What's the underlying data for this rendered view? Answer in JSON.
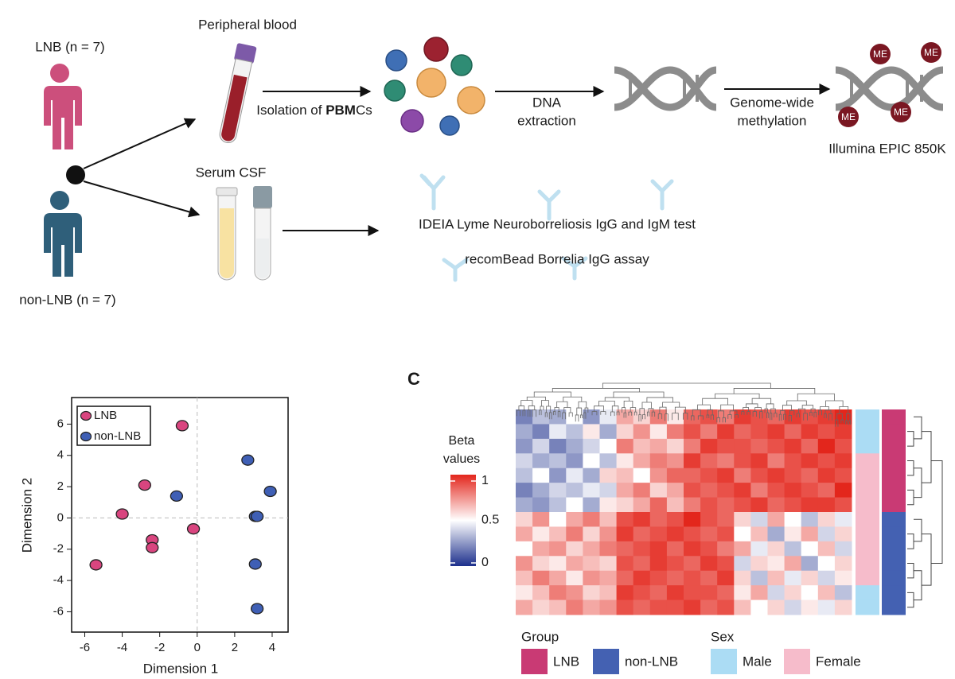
{
  "workflow": {
    "lnb_label": "LNB (n = 7)",
    "nonlnb_label": "non-LNB (n = 7)",
    "peripheral_blood": "Peripheral blood",
    "isolation_prefix": "Isolation of ",
    "isolation_bold": "PBM",
    "isolation_suffix": "Cs",
    "dna_extraction": [
      "DNA",
      "extraction"
    ],
    "genome_wide": [
      "Genome-wide",
      "methylation"
    ],
    "illumina": "Illumina EPIC 850K",
    "me_labels": [
      "ME",
      "ME",
      "ME",
      "ME"
    ],
    "serum_csf": "Serum CSF",
    "ideia": "IDEIA Lyme Neuroborreliosis IgG and IgM test",
    "recombead": "recomBead Borrelia IgG assay"
  },
  "panel_label": "C",
  "chart_data": [
    {
      "type": "scatter",
      "xlabel": "Dimension 1",
      "ylabel": "Dimension 2",
      "xlim": [
        -6.7,
        4.85
      ],
      "ylim": [
        -7.3,
        7.7
      ],
      "xticks": [
        -6,
        -4,
        -2,
        0,
        2,
        4
      ],
      "yticks": [
        -6,
        -4,
        -2,
        0,
        2,
        4,
        6
      ],
      "legend": "upper left",
      "series": [
        {
          "name": "LNB",
          "color": "#d9457f",
          "x": [
            -0.8,
            -2.8,
            -4.0,
            -0.2,
            -2.4,
            -2.4,
            -5.4
          ],
          "y": [
            5.9,
            2.1,
            0.25,
            -0.7,
            -1.4,
            -1.9,
            -3.0
          ]
        },
        {
          "name": "non-LNB",
          "color": "#3f5fb5",
          "x": [
            2.7,
            3.9,
            -1.1,
            3.1,
            3.2,
            3.1,
            3.2
          ],
          "y": [
            3.7,
            1.7,
            1.4,
            0.1,
            0.1,
            -2.95,
            -5.8
          ]
        }
      ]
    },
    {
      "type": "heatmap",
      "colorbar_title": [
        "Beta",
        "values"
      ],
      "zlim": [
        0,
        1
      ],
      "zticks": [
        0,
        0.5,
        1
      ],
      "colormap": [
        "#1c2f8c",
        "#ffffff",
        "#e3261c"
      ],
      "values": [
        [
          0.2,
          0.35,
          0.3,
          0.5,
          0.25,
          0.45,
          0.7,
          0.6,
          0.8,
          0.55,
          0.85,
          0.9,
          0.8,
          0.95,
          0.9,
          0.85,
          0.95,
          0.9,
          0.95,
          1
        ],
        [
          0.3,
          0.2,
          0.45,
          0.35,
          0.55,
          0.3,
          0.6,
          0.75,
          0.55,
          0.8,
          0.9,
          0.8,
          0.95,
          0.85,
          0.9,
          0.95,
          0.85,
          0.95,
          0.9,
          0.95
        ],
        [
          0.25,
          0.4,
          0.2,
          0.3,
          0.4,
          0.5,
          0.8,
          0.65,
          0.7,
          0.6,
          0.8,
          0.95,
          0.9,
          0.9,
          0.85,
          0.9,
          0.95,
          0.85,
          1,
          0.9
        ],
        [
          0.4,
          0.3,
          0.35,
          0.25,
          0.5,
          0.35,
          0.55,
          0.7,
          0.8,
          0.75,
          0.95,
          0.85,
          0.8,
          0.9,
          0.95,
          0.8,
          0.9,
          0.95,
          0.9,
          0.95
        ],
        [
          0.35,
          0.5,
          0.25,
          0.45,
          0.3,
          0.6,
          0.65,
          0.5,
          0.75,
          0.85,
          0.85,
          0.9,
          0.95,
          0.8,
          0.9,
          0.95,
          0.9,
          0.85,
          0.95,
          0.9
        ],
        [
          0.2,
          0.3,
          0.4,
          0.35,
          0.45,
          0.4,
          0.7,
          0.8,
          0.6,
          0.7,
          0.9,
          0.85,
          0.9,
          0.95,
          0.8,
          0.9,
          0.95,
          0.9,
          0.85,
          1
        ],
        [
          0.3,
          0.25,
          0.35,
          0.5,
          0.3,
          0.55,
          0.6,
          0.7,
          0.85,
          0.65,
          0.8,
          0.9,
          0.85,
          0.9,
          0.95,
          0.85,
          0.9,
          0.95,
          0.95,
          0.9
        ],
        [
          0.6,
          0.75,
          0.5,
          0.7,
          0.8,
          0.65,
          0.9,
          0.95,
          0.85,
          0.9,
          1,
          0.9,
          0.85,
          0.6,
          0.4,
          0.7,
          0.5,
          0.35,
          0.6,
          0.45
        ],
        [
          0.7,
          0.55,
          0.65,
          0.8,
          0.6,
          0.75,
          0.95,
          0.85,
          0.9,
          0.95,
          0.9,
          0.85,
          0.9,
          0.5,
          0.65,
          0.3,
          0.55,
          0.7,
          0.4,
          0.6
        ],
        [
          0.5,
          0.7,
          0.75,
          0.6,
          0.7,
          0.8,
          0.85,
          0.9,
          0.95,
          0.85,
          0.95,
          0.9,
          0.8,
          0.7,
          0.45,
          0.6,
          0.35,
          0.5,
          0.65,
          0.4
        ],
        [
          0.75,
          0.6,
          0.55,
          0.7,
          0.65,
          0.6,
          0.9,
          0.85,
          0.95,
          0.9,
          0.85,
          0.95,
          0.9,
          0.4,
          0.6,
          0.55,
          0.7,
          0.3,
          0.5,
          0.6
        ],
        [
          0.65,
          0.8,
          0.7,
          0.55,
          0.75,
          0.7,
          0.85,
          0.95,
          0.9,
          0.85,
          0.9,
          0.85,
          0.95,
          0.6,
          0.35,
          0.65,
          0.45,
          0.6,
          0.4,
          0.55
        ],
        [
          0.55,
          0.65,
          0.8,
          0.75,
          0.6,
          0.65,
          0.95,
          0.9,
          0.85,
          0.95,
          0.9,
          0.9,
          0.85,
          0.55,
          0.7,
          0.4,
          0.6,
          0.5,
          0.65,
          0.35
        ],
        [
          0.7,
          0.6,
          0.65,
          0.8,
          0.7,
          0.75,
          0.9,
          0.85,
          0.9,
          0.9,
          0.95,
          0.85,
          0.9,
          0.65,
          0.5,
          0.6,
          0.4,
          0.55,
          0.45,
          0.6
        ]
      ],
      "group_title": "Group",
      "groups": [
        {
          "name": "LNB",
          "color": "#c93a74"
        },
        {
          "name": "non-LNB",
          "color": "#4461b2"
        }
      ],
      "row_group": [
        0,
        0,
        0,
        0,
        0,
        0,
        0,
        1,
        1,
        1,
        1,
        1,
        1,
        1
      ],
      "sex_title": "Sex",
      "sexes": [
        {
          "name": "Male",
          "color": "#abdcf4"
        },
        {
          "name": "Female",
          "color": "#f6bccb"
        }
      ],
      "row_sex": [
        0,
        0,
        0,
        1,
        1,
        1,
        1,
        1,
        1,
        1,
        1,
        1,
        0,
        0
      ]
    }
  ]
}
